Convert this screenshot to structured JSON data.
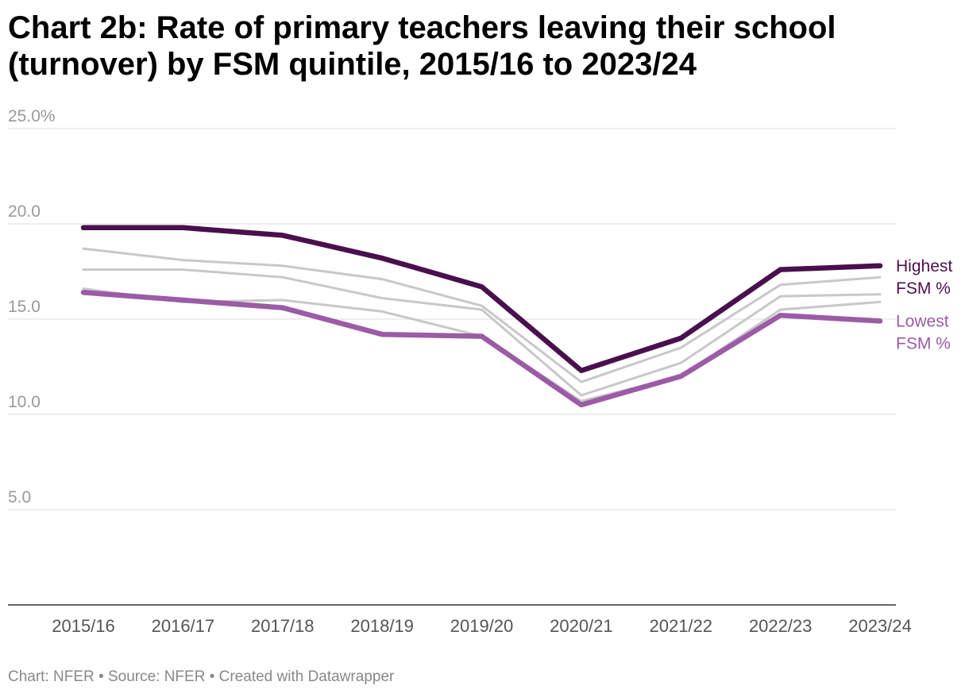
{
  "chart_data": {
    "type": "line",
    "title": "Chart 2b: Rate of primary teachers leaving their school (turnover) by FSM quintile, 2015/16 to 2023/24",
    "categories": [
      "2015/16",
      "2016/17",
      "2017/18",
      "2018/19",
      "2019/20",
      "2020/21",
      "2021/22",
      "2022/23",
      "2023/24"
    ],
    "y_ticks": [
      "25.0%",
      "20.0",
      "15.0",
      "10.0",
      "5.0"
    ],
    "y_tick_values": [
      25,
      20,
      15,
      10,
      5
    ],
    "ylim": [
      0,
      25
    ],
    "grid": true,
    "series": [
      {
        "name": "Highest FSM %",
        "label_lines": [
          "Highest",
          "FSM %"
        ],
        "color": "#4a0f4e",
        "emphasis": true,
        "values": [
          19.8,
          19.8,
          19.4,
          18.2,
          16.7,
          12.3,
          14.0,
          17.6,
          17.8
        ]
      },
      {
        "name": "",
        "color": "#c8c8c8",
        "emphasis": false,
        "values": [
          18.7,
          18.1,
          17.8,
          17.1,
          15.7,
          11.7,
          13.5,
          16.8,
          17.2
        ]
      },
      {
        "name": "",
        "color": "#c8c8c8",
        "emphasis": false,
        "values": [
          17.6,
          17.6,
          17.2,
          16.1,
          15.5,
          11.0,
          12.7,
          16.2,
          16.3
        ]
      },
      {
        "name": "",
        "color": "#c8c8c8",
        "emphasis": false,
        "values": [
          16.6,
          15.9,
          16.0,
          15.4,
          14.1,
          10.7,
          12.0,
          15.5,
          15.9
        ]
      },
      {
        "name": "Lowest FSM %",
        "label_lines": [
          "Lowest",
          "FSM %"
        ],
        "color": "#9b5ba6",
        "emphasis": true,
        "values": [
          16.4,
          16.0,
          15.6,
          14.2,
          14.1,
          10.5,
          12.0,
          15.2,
          14.9
        ]
      }
    ]
  },
  "footer": "Chart: NFER • Source: NFER • Created with Datawrapper"
}
